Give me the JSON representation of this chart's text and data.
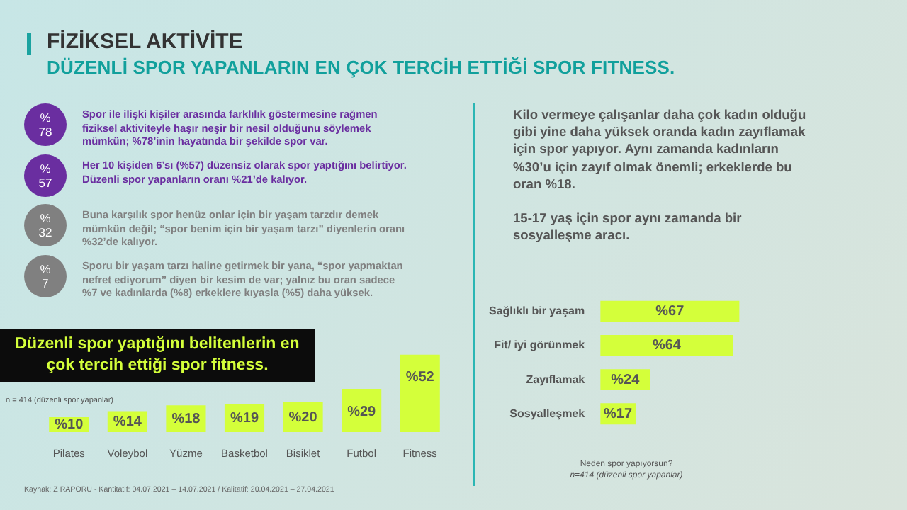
{
  "chart_data": [
    {
      "type": "other",
      "title": "FİZİKSEL AKTİVİTE",
      "subtitle": "DÜZENLİ SPOR YAPANLARIN EN ÇOK TERCİH ETTİĞİ SPOR FITNESS.",
      "annotations": [
        "%78",
        "Spor ile ilişki kişiler arasında farklılık  göstermesine rağmen fiziksel aktiviteyle haşır neşir bir nesil olduğunu söylemek mümkün; %78’inin hayatında bir şekilde spor var.",
        "%57",
        "Her 10 kişiden 6’sı (%57) düzensiz olarak spor yaptığını belirtiyor. Düzenli spor yapanların oranı %21’de kalıyor.",
        "%32",
        "Buna karşılık  spor henüz onlar için bir yaşam tarzdır demek mümkün değil; “spor benim için bir yaşam tarzı”  diyenlerin oranı  %32’de kalıyor.",
        "%7",
        "Sporu bir yaşam tarzı haline getirmek bir yana, “spor yapmaktan nefret ediyorum” diyen bir kesim de var; yalnız bu oran sadece %7 ve kadınlarda (%8) erkeklere kıyasla (%5) daha yüksek.",
        "Kilo vermeye çalışanlar daha çok kadın olduğu gibi yine daha yüksek oranda kadın zayıflamak için spor yapıyor. Aynı zamanda kadınların %30’u için zayıf olmak önemli; erkeklerde bu oran %18.",
        "15-17 yaş için spor aynı zamanda bir sosyalleşme aracı.",
        "Kaynak: Z RAPORU - Kantitatif: 04.07.2021 – 14.07.2021 / Kalitatif: 20.04.2021 – 27.04.2021"
      ]
    },
    {
      "type": "bar",
      "title": "Düzenli spor yaptığını belitenlerin en çok tercih ettiği spor fitness.",
      "subtitle": "n = 414 (düzenli spor yapanlar)",
      "categories": [
        "Pilates",
        "Voleybol",
        "Yüzme",
        "Basketbol",
        "Bisiklet",
        "Futbol",
        "Fitness"
      ],
      "values": [
        10,
        14,
        18,
        19,
        20,
        29,
        52
      ],
      "value_labels": [
        "%10",
        "%14",
        "%18",
        "%19",
        "%20",
        "%29",
        "%52"
      ],
      "color": "#d4ff3a"
    },
    {
      "type": "bar",
      "orientation": "horizontal",
      "categories": [
        "Sağlıklı bir yaşam",
        "Fit/ iyi görünmek",
        "Zayıflamak",
        "Sosyalleşmek"
      ],
      "values": [
        67,
        64,
        24,
        17
      ],
      "value_labels": [
        "%67",
        "%64",
        "%24",
        "%17"
      ],
      "color": "#d4ff3a",
      "annotations": [
        "Neden spor yapıyorsun?",
        "n=414 (düzenli spor yapanlar)"
      ]
    }
  ]
}
